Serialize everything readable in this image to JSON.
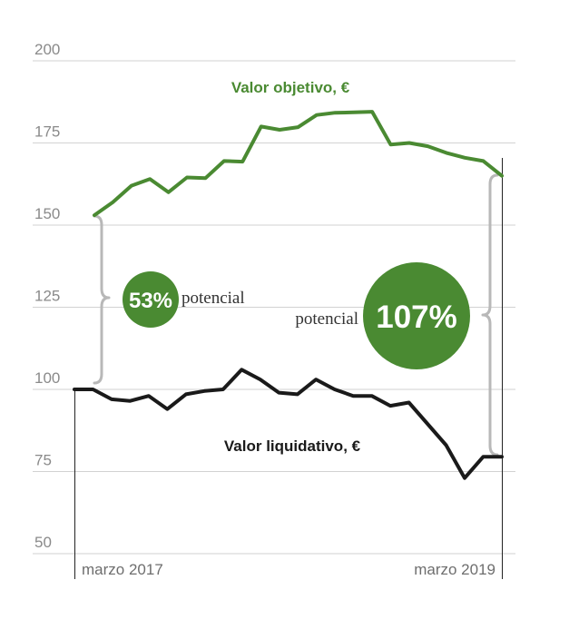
{
  "chart_data": {
    "type": "line",
    "title": "",
    "xlabel": "",
    "ylabel": "",
    "ylim": [
      50,
      200
    ],
    "yticks": [
      200,
      175,
      150,
      125,
      100,
      75,
      50
    ],
    "x_labels": [
      "marzo 2017",
      "marzo 2019"
    ],
    "grid": true,
    "series": [
      {
        "name": "Valor objetivo, €",
        "color": "#4a8a32",
        "values": [
          153,
          157,
          162,
          164,
          160,
          164.5,
          164.3,
          169.5,
          169.3,
          180,
          179,
          179.8,
          183.5,
          184.2,
          184.3,
          184.5,
          174.5,
          175,
          174,
          172,
          170.5,
          169.5,
          165
        ]
      },
      {
        "name": "Valor liquidativo, €",
        "color": "#1a1a1a",
        "values": [
          100,
          100,
          97,
          96.5,
          98,
          94,
          98.5,
          99.5,
          100,
          106,
          103,
          99,
          98.5,
          103,
          100,
          98,
          98,
          95,
          96,
          89.5,
          83,
          73,
          79.5,
          79.5
        ]
      }
    ],
    "annotations": [
      {
        "value": "53%",
        "label": "potencial"
      },
      {
        "value": "107%",
        "label": "potencial"
      }
    ]
  }
}
